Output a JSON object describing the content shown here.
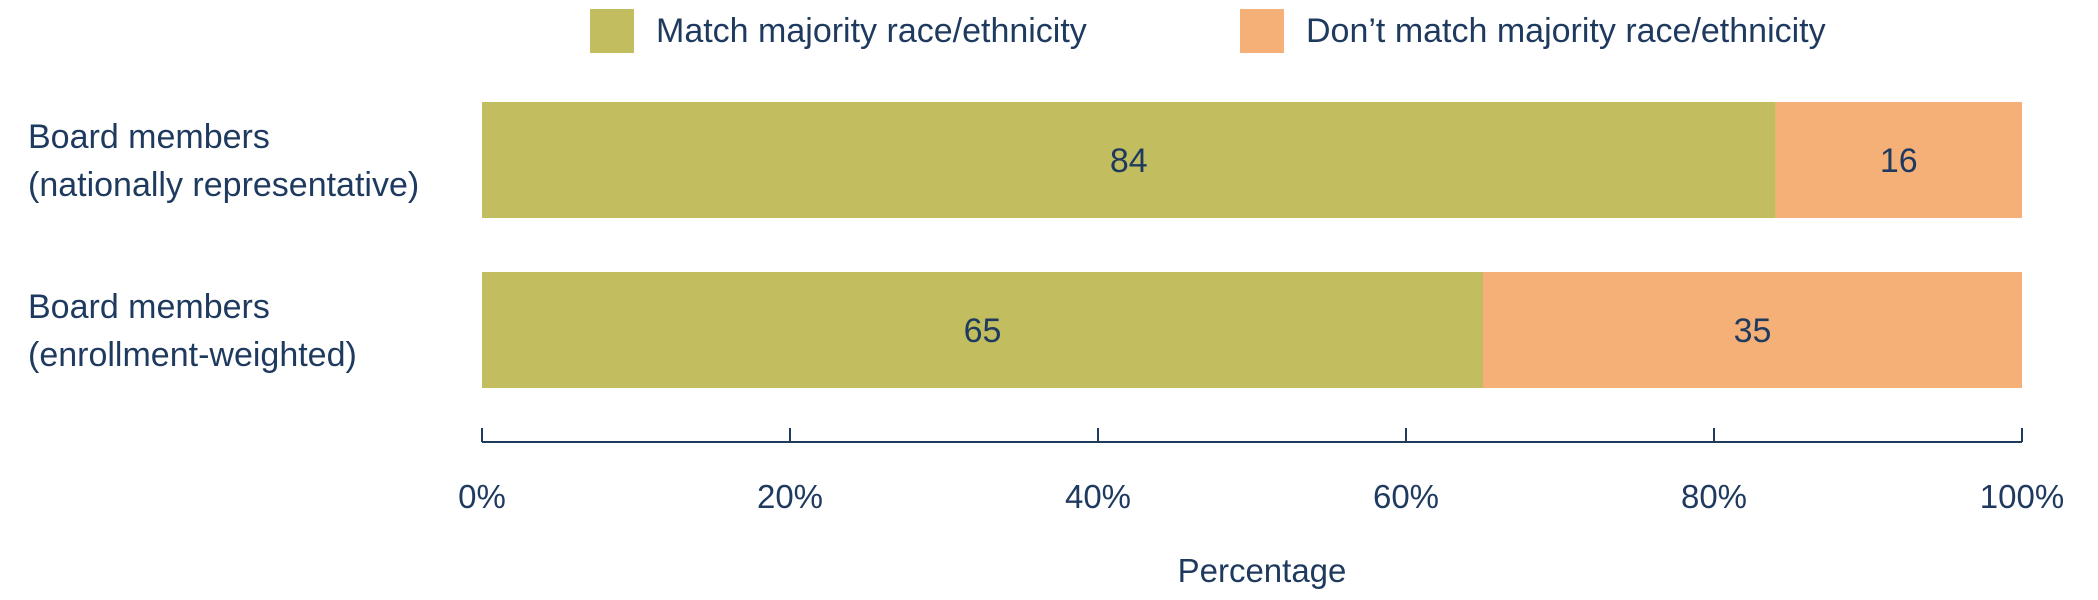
{
  "chart_data": {
    "type": "bar",
    "orientation": "horizontal",
    "stacked": true,
    "categories": [
      [
        "Board members",
        "(nationally representative)"
      ],
      [
        "Board members",
        "(enrollment-weighted)"
      ]
    ],
    "series": [
      {
        "name": "Match majority race/ethnicity",
        "color": "#c2bd5e",
        "values": [
          84,
          65
        ]
      },
      {
        "name": "Don’t match majority race/ethnicity",
        "color": "#f5b077",
        "values": [
          16,
          35
        ]
      }
    ],
    "xlabel": "Percentage",
    "xlim": [
      0,
      100
    ],
    "x_ticks": [
      0,
      20,
      40,
      60,
      80,
      100
    ],
    "x_tick_labels": [
      "0%",
      "20%",
      "40%",
      "60%",
      "80%",
      "100%"
    ],
    "legend_position": "top",
    "grid": false,
    "text_color": "#1f3a5f"
  }
}
